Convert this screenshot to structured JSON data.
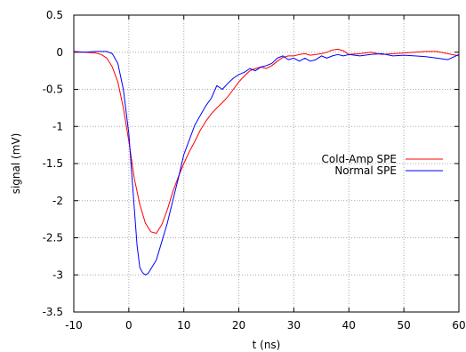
{
  "chart_data": {
    "type": "line",
    "title": "",
    "xlabel": "t (ns)",
    "ylabel": "signal (mV)",
    "xlim": [
      -10,
      60
    ],
    "ylim": [
      -3.5,
      0.5
    ],
    "x_ticks": [
      -10,
      0,
      10,
      20,
      30,
      40,
      50,
      60
    ],
    "y_ticks": [
      0.5,
      0,
      -0.5,
      -1,
      -1.5,
      -2,
      -2.5,
      -3,
      -3.5
    ],
    "x_tick_labels": [
      "-10",
      "0",
      "10",
      "20",
      "30",
      "40",
      "50",
      "60"
    ],
    "y_tick_labels": [
      "0.5",
      "0",
      "-0.5",
      "-1",
      "-1.5",
      "-2",
      "-2.5",
      "-3",
      "-3.5"
    ],
    "grid": true,
    "legend": "center-right",
    "series": [
      {
        "name": "Cold-Amp SPE",
        "color": "#ff0000",
        "x": [
          -10,
          -8,
          -6,
          -5,
          -4,
          -3,
          -2,
          -1,
          0,
          1,
          2,
          3,
          4,
          5,
          6,
          7,
          8,
          9,
          10,
          11,
          12,
          13,
          14,
          15,
          16,
          17,
          18,
          19,
          20,
          21,
          22,
          23,
          24,
          25,
          26,
          27,
          28,
          29,
          30,
          31,
          32,
          33,
          34,
          35,
          36,
          37,
          38,
          39,
          40,
          42,
          44,
          46,
          48,
          50,
          52,
          54,
          56,
          58,
          60
        ],
        "y": [
          0,
          0,
          -0.01,
          -0.03,
          -0.08,
          -0.2,
          -0.4,
          -0.75,
          -1.2,
          -1.7,
          -2.05,
          -2.3,
          -2.42,
          -2.44,
          -2.32,
          -2.12,
          -1.88,
          -1.68,
          -1.5,
          -1.34,
          -1.2,
          -1.05,
          -0.93,
          -0.83,
          -0.75,
          -0.68,
          -0.6,
          -0.5,
          -0.4,
          -0.32,
          -0.25,
          -0.22,
          -0.2,
          -0.22,
          -0.18,
          -0.12,
          -0.07,
          -0.05,
          -0.05,
          -0.03,
          -0.02,
          -0.04,
          -0.03,
          -0.02,
          0,
          0.03,
          0.04,
          0.02,
          -0.03,
          -0.02,
          0,
          -0.03,
          -0.02,
          -0.01,
          0,
          0.01,
          0.01,
          -0.02,
          -0.05
        ]
      },
      {
        "name": "Normal SPE",
        "color": "#0000ff",
        "x": [
          -10,
          -8,
          -6,
          -4,
          -3,
          -2,
          -1,
          0,
          0.5,
          1,
          1.5,
          2,
          2.5,
          3,
          3.5,
          4,
          5,
          6,
          7,
          8,
          9,
          10,
          11,
          12,
          13,
          14,
          15,
          16,
          17,
          18,
          19,
          20,
          21,
          22,
          23,
          24,
          25,
          26,
          27,
          28,
          29,
          30,
          31,
          32,
          33,
          34,
          35,
          36,
          37,
          38,
          39,
          40,
          42,
          44,
          46,
          48,
          50,
          52,
          54,
          56,
          58,
          60
        ],
        "y": [
          0.01,
          0,
          0.01,
          0.01,
          -0.02,
          -0.15,
          -0.5,
          -1.1,
          -1.6,
          -2.1,
          -2.6,
          -2.9,
          -2.97,
          -3.0,
          -2.98,
          -2.92,
          -2.8,
          -2.55,
          -2.3,
          -2.0,
          -1.7,
          -1.38,
          -1.18,
          -0.98,
          -0.85,
          -0.72,
          -0.62,
          -0.45,
          -0.5,
          -0.42,
          -0.35,
          -0.3,
          -0.27,
          -0.22,
          -0.25,
          -0.2,
          -0.18,
          -0.15,
          -0.08,
          -0.05,
          -0.1,
          -0.08,
          -0.12,
          -0.08,
          -0.12,
          -0.1,
          -0.05,
          -0.08,
          -0.05,
          -0.03,
          -0.05,
          -0.03,
          -0.05,
          -0.03,
          -0.02,
          -0.05,
          -0.04,
          -0.05,
          -0.06,
          -0.08,
          -0.1,
          -0.03
        ]
      }
    ]
  }
}
